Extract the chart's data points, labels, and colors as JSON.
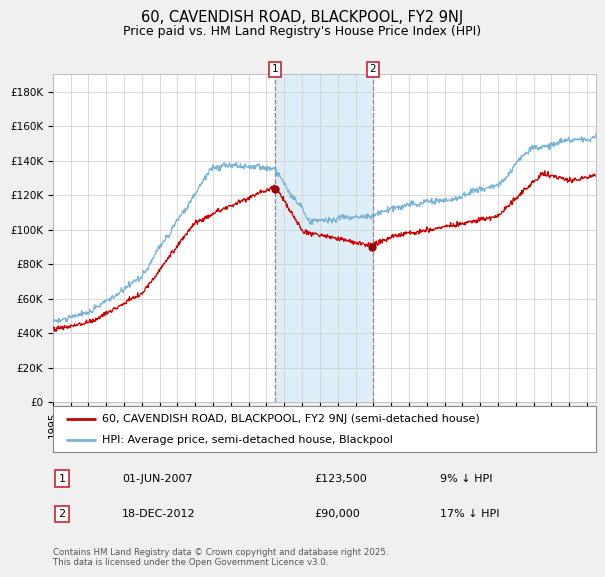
{
  "title1": "60, CAVENDISH ROAD, BLACKPOOL, FY2 9NJ",
  "title2": "Price paid vs. HM Land Registry's House Price Index (HPI)",
  "legend1": "60, CAVENDISH ROAD, BLACKPOOL, FY2 9NJ (semi-detached house)",
  "legend2": "HPI: Average price, semi-detached house, Blackpool",
  "annotation1_label": "1",
  "annotation1_date": "01-JUN-2007",
  "annotation1_price": "£123,500",
  "annotation1_hpi": "9% ↓ HPI",
  "annotation1_year": 2007.5,
  "annotation1_value": 123500,
  "annotation2_label": "2",
  "annotation2_date": "18-DEC-2012",
  "annotation2_price": "£90,000",
  "annotation2_hpi": "17% ↓ HPI",
  "annotation2_year": 2012.96,
  "annotation2_value": 90000,
  "hpi_color": "#7ab3d8",
  "price_color": "#cc0000",
  "dot_color": "#990000",
  "shade_color": "#ddeef8",
  "vline_color": "#dd6677",
  "grid_color": "#cccccc",
  "background_color": "#f0f0f0",
  "plot_bg_color": "#ffffff",
  "ylim": [
    0,
    190000
  ],
  "yticks": [
    0,
    20000,
    40000,
    60000,
    80000,
    100000,
    120000,
    140000,
    160000,
    180000
  ],
  "ytick_labels": [
    "£0",
    "£20K",
    "£40K",
    "£60K",
    "£80K",
    "£100K",
    "£120K",
    "£140K",
    "£160K",
    "£180K"
  ],
  "footnote": "Contains HM Land Registry data © Crown copyright and database right 2025.\nThis data is licensed under the Open Government Licence v3.0.",
  "title_fontsize": 10.5,
  "subtitle_fontsize": 9,
  "tick_fontsize": 7.5,
  "legend_fontsize": 8,
  "ann_fontsize": 8
}
